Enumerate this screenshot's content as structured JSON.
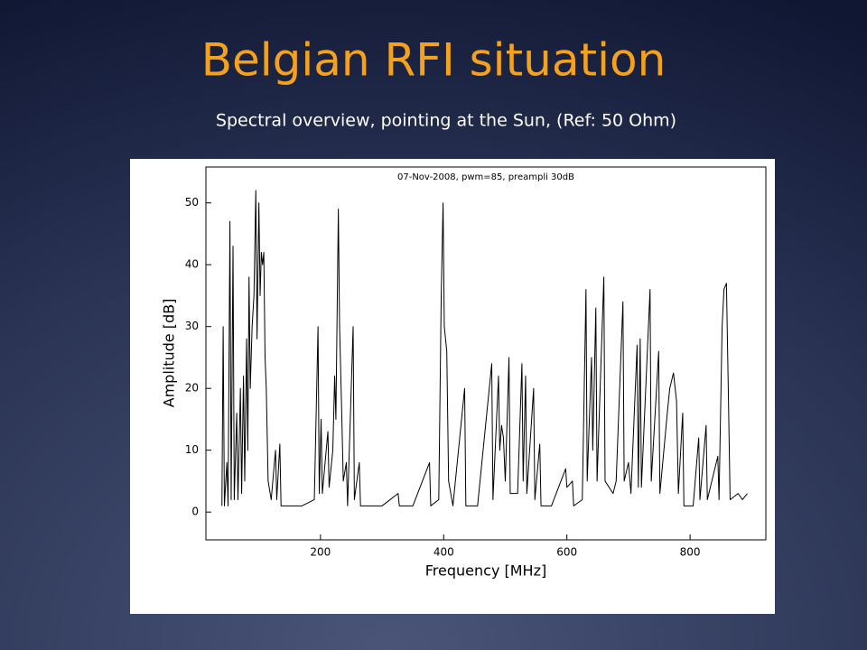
{
  "slide": {
    "title": "Belgian RFI situation",
    "subtitle": "Spectral overview, pointing at the Sun, (Ref: 50 Ohm)"
  },
  "chart_data": {
    "type": "line",
    "title": "07-Nov-2008, pwm=85, preampli 30dB",
    "x_label": "Frequency [MHz]",
    "y_label": "Amplitude [dB]",
    "color": "#000000",
    "xlim": [
      14,
      923
    ],
    "ylim": [
      -4.5,
      55.8
    ],
    "xticks": [
      200,
      400,
      600,
      800
    ],
    "yticks": [
      0,
      10,
      20,
      30,
      40,
      50
    ],
    "grid": false,
    "x": [
      40,
      42,
      44,
      48,
      50,
      53,
      55,
      58,
      60,
      64,
      66,
      70,
      72,
      75,
      77,
      80,
      82,
      84,
      86,
      89,
      92,
      95,
      97,
      100,
      102,
      104,
      106,
      108,
      110,
      112,
      115,
      120,
      127,
      129,
      134,
      136,
      150,
      170,
      190,
      196,
      198,
      201,
      203,
      212,
      214,
      220,
      223,
      225,
      229,
      231,
      234,
      237,
      242,
      244,
      253,
      255,
      263,
      265,
      280,
      300,
      326,
      328,
      350,
      377,
      379,
      392,
      396,
      399,
      401,
      405,
      408,
      415,
      434,
      436,
      455,
      478,
      480,
      489,
      491,
      494,
      497,
      500,
      506,
      508,
      520,
      527,
      529,
      533,
      535,
      546,
      548,
      556,
      558,
      575,
      598,
      600,
      609,
      611,
      625,
      631,
      633,
      640,
      642,
      647,
      649,
      660,
      662,
      675,
      680,
      691,
      693,
      700,
      704,
      714,
      716,
      719,
      721,
      735,
      737,
      749,
      751,
      763,
      767,
      773,
      778,
      781,
      788,
      790,
      805,
      814,
      816,
      826,
      828,
      845,
      847,
      852,
      855,
      859,
      862,
      865,
      878,
      885,
      893
    ],
    "values": [
      1,
      30,
      1,
      8,
      1,
      47,
      2,
      43,
      2,
      16,
      2,
      20,
      3,
      22,
      5,
      28,
      10,
      38,
      20,
      30,
      35,
      52,
      28,
      50,
      35,
      42,
      40,
      42,
      25,
      20,
      5,
      2,
      10,
      2,
      11,
      1,
      1,
      1,
      2,
      30,
      3,
      15,
      3,
      13,
      4,
      10,
      22,
      15,
      49,
      30,
      18,
      5,
      8,
      1,
      30,
      2,
      8,
      1,
      1,
      1,
      3,
      1,
      1,
      8,
      1,
      2,
      35,
      50,
      30,
      26,
      5,
      1,
      20,
      1,
      1,
      24,
      2,
      22,
      10,
      14,
      12,
      5,
      25,
      3,
      3,
      24,
      5,
      22,
      3,
      20,
      2,
      11,
      1,
      1,
      7,
      4,
      5,
      1,
      2,
      36,
      5,
      25,
      10,
      33,
      5,
      38,
      5,
      3,
      5,
      34,
      5,
      8,
      3,
      27,
      4,
      28,
      4,
      36,
      5,
      26,
      3,
      16,
      20,
      22.5,
      18,
      3,
      16,
      1,
      1,
      12,
      2,
      14,
      2,
      9,
      2,
      30,
      36,
      37,
      20,
      2,
      3,
      2,
      3
    ]
  }
}
